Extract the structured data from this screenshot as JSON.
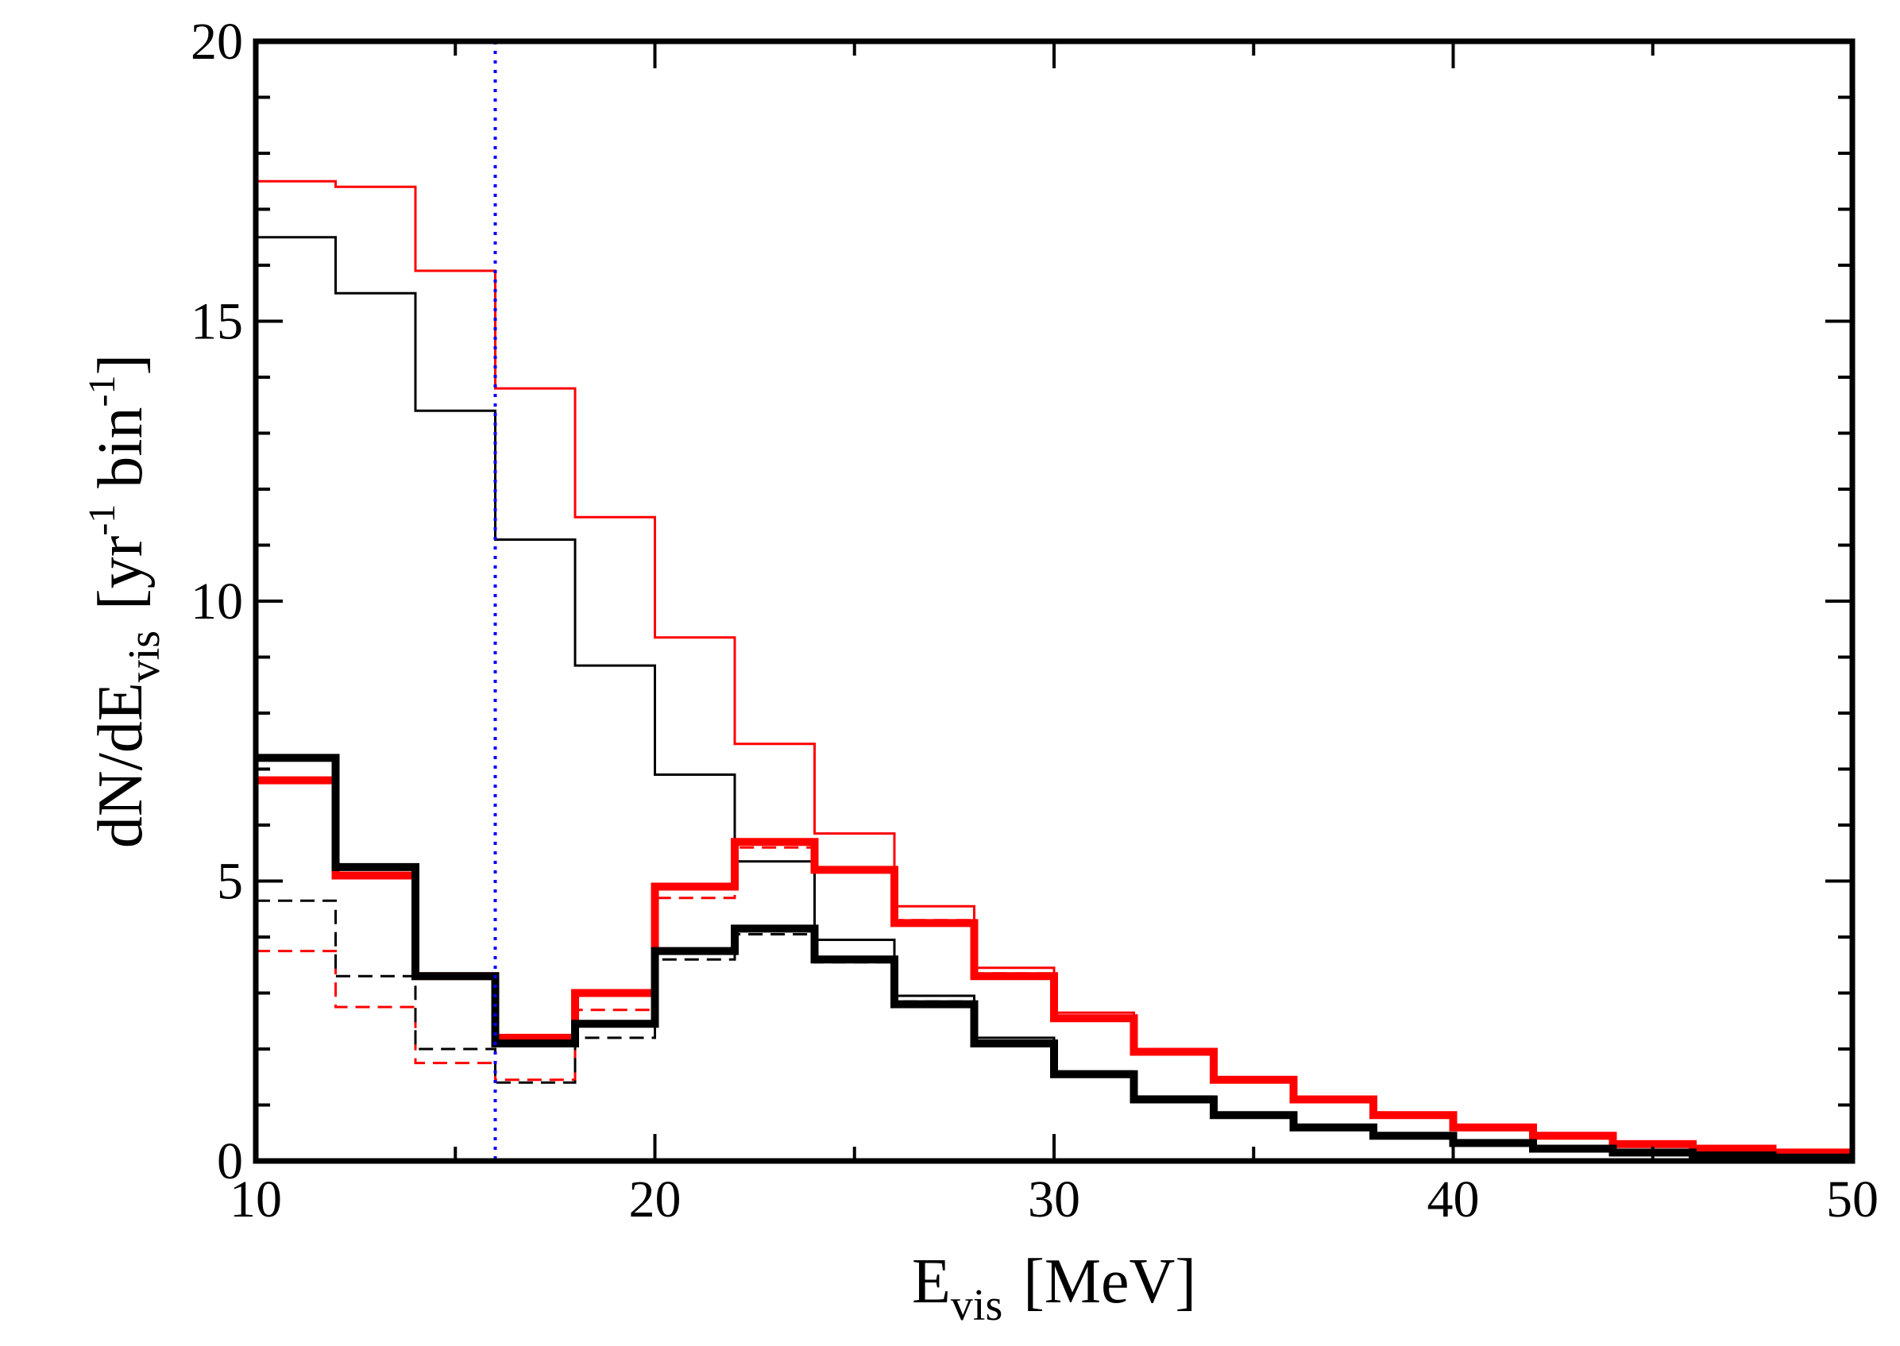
{
  "chart_data": {
    "type": "line",
    "title": "",
    "xlabel": {
      "main": "E",
      "sub": "vis",
      "unit": "[MeV]"
    },
    "ylabel": {
      "main": "dN/dE",
      "sub": "vis",
      "unit_open": "[yr",
      "sup1": "-1",
      "mid": " bin",
      "sup2": "-1",
      "unit_close": "]"
    },
    "xlim": [
      10,
      50
    ],
    "ylim": [
      0,
      20
    ],
    "xticks": [
      10,
      20,
      30,
      40,
      50
    ],
    "yticks": [
      0,
      5,
      10,
      15,
      20
    ],
    "xtick_labels": [
      "10",
      "20",
      "30",
      "40",
      "50"
    ],
    "ytick_labels": [
      "0",
      "5",
      "10",
      "15",
      "20"
    ],
    "bin_edges": [
      10,
      12,
      14,
      16,
      18,
      20,
      22,
      24,
      26,
      28,
      30,
      32,
      34,
      36,
      38,
      40,
      42,
      44,
      46,
      48,
      50
    ],
    "threshold_line": {
      "x": 16,
      "color": "#0000ff",
      "style": "dotted"
    },
    "series": [
      {
        "name": "red thin solid",
        "color": "#ff0000",
        "style": "solid",
        "weight": "thin",
        "values": [
          17.5,
          17.4,
          15.9,
          13.8,
          11.5,
          9.35,
          7.45,
          5.85,
          4.55,
          3.45,
          2.65,
          1.95,
          1.45,
          1.1,
          0.85,
          0.6,
          0.45,
          0.3,
          0.22,
          0.15
        ]
      },
      {
        "name": "black thin solid",
        "color": "#000000",
        "style": "solid",
        "weight": "thin",
        "values": [
          16.5,
          15.5,
          13.4,
          11.1,
          8.85,
          6.9,
          5.35,
          3.95,
          2.95,
          2.2,
          1.6,
          1.15,
          0.85,
          0.6,
          0.45,
          0.32,
          0.22,
          0.15,
          0.1,
          0.06
        ]
      },
      {
        "name": "red dashed",
        "color": "#ff0000",
        "style": "dashed",
        "weight": "thin",
        "values": [
          3.75,
          2.75,
          1.75,
          1.45,
          2.7,
          4.7,
          5.6,
          5.2,
          4.3,
          3.35,
          2.55,
          1.95,
          1.45,
          1.1,
          0.85,
          0.6,
          0.45,
          0.3,
          0.22,
          0.15
        ]
      },
      {
        "name": "black dashed",
        "color": "#000000",
        "style": "dashed",
        "weight": "thin",
        "values": [
          4.65,
          3.3,
          2.0,
          1.4,
          2.2,
          3.6,
          4.05,
          3.55,
          2.85,
          2.1,
          1.55,
          1.1,
          0.82,
          0.6,
          0.45,
          0.32,
          0.22,
          0.15,
          0.1,
          0.06
        ]
      },
      {
        "name": "red thick solid",
        "color": "#ff0000",
        "style": "solid",
        "weight": "thick",
        "values": [
          6.8,
          5.1,
          3.3,
          2.2,
          3.0,
          4.9,
          5.7,
          5.2,
          4.25,
          3.3,
          2.55,
          1.95,
          1.45,
          1.1,
          0.82,
          0.6,
          0.45,
          0.3,
          0.22,
          0.15
        ]
      },
      {
        "name": "black thick solid",
        "color": "#000000",
        "style": "solid",
        "weight": "thick",
        "values": [
          7.2,
          5.25,
          3.3,
          2.1,
          2.45,
          3.75,
          4.15,
          3.6,
          2.8,
          2.1,
          1.55,
          1.1,
          0.82,
          0.6,
          0.45,
          0.32,
          0.22,
          0.15,
          0.1,
          0.06
        ]
      }
    ]
  }
}
